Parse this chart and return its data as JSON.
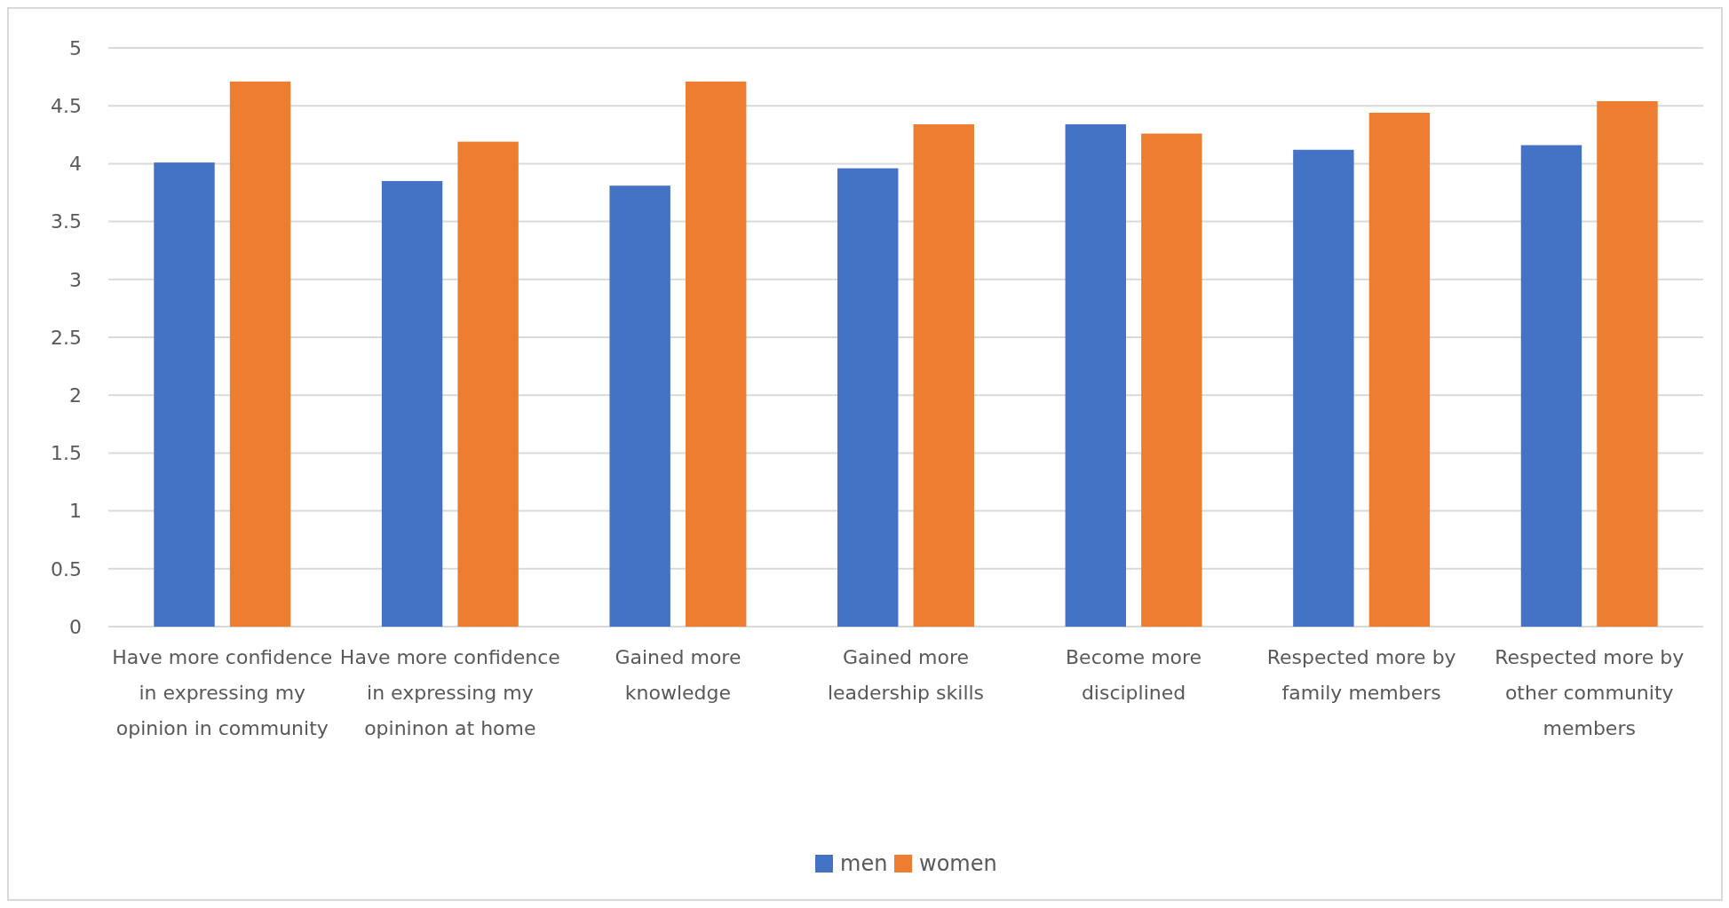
{
  "chart_data": {
    "type": "bar",
    "categories": [
      "Have more confidence in expressing my opinion in community",
      "Have more confidence in expressing my opininon at home",
      "Gained more knowledge",
      "Gained more leadership skills",
      "Become more disciplined",
      "Respected more by family members",
      "Respected more by other community members"
    ],
    "series": [
      {
        "name": "men",
        "color": "#4472c4",
        "values": [
          4.01,
          3.85,
          3.81,
          3.96,
          4.34,
          4.12,
          4.16
        ]
      },
      {
        "name": "women",
        "color": "#ed7d31",
        "values": [
          4.71,
          4.19,
          4.71,
          4.34,
          4.26,
          4.44,
          4.54
        ]
      }
    ],
    "ylim": [
      0,
      5
    ],
    "yticks": [
      0,
      0.5,
      1,
      1.5,
      2,
      2.5,
      3,
      3.5,
      4,
      4.5,
      5
    ],
    "grid": "y",
    "legend": "bottom"
  }
}
